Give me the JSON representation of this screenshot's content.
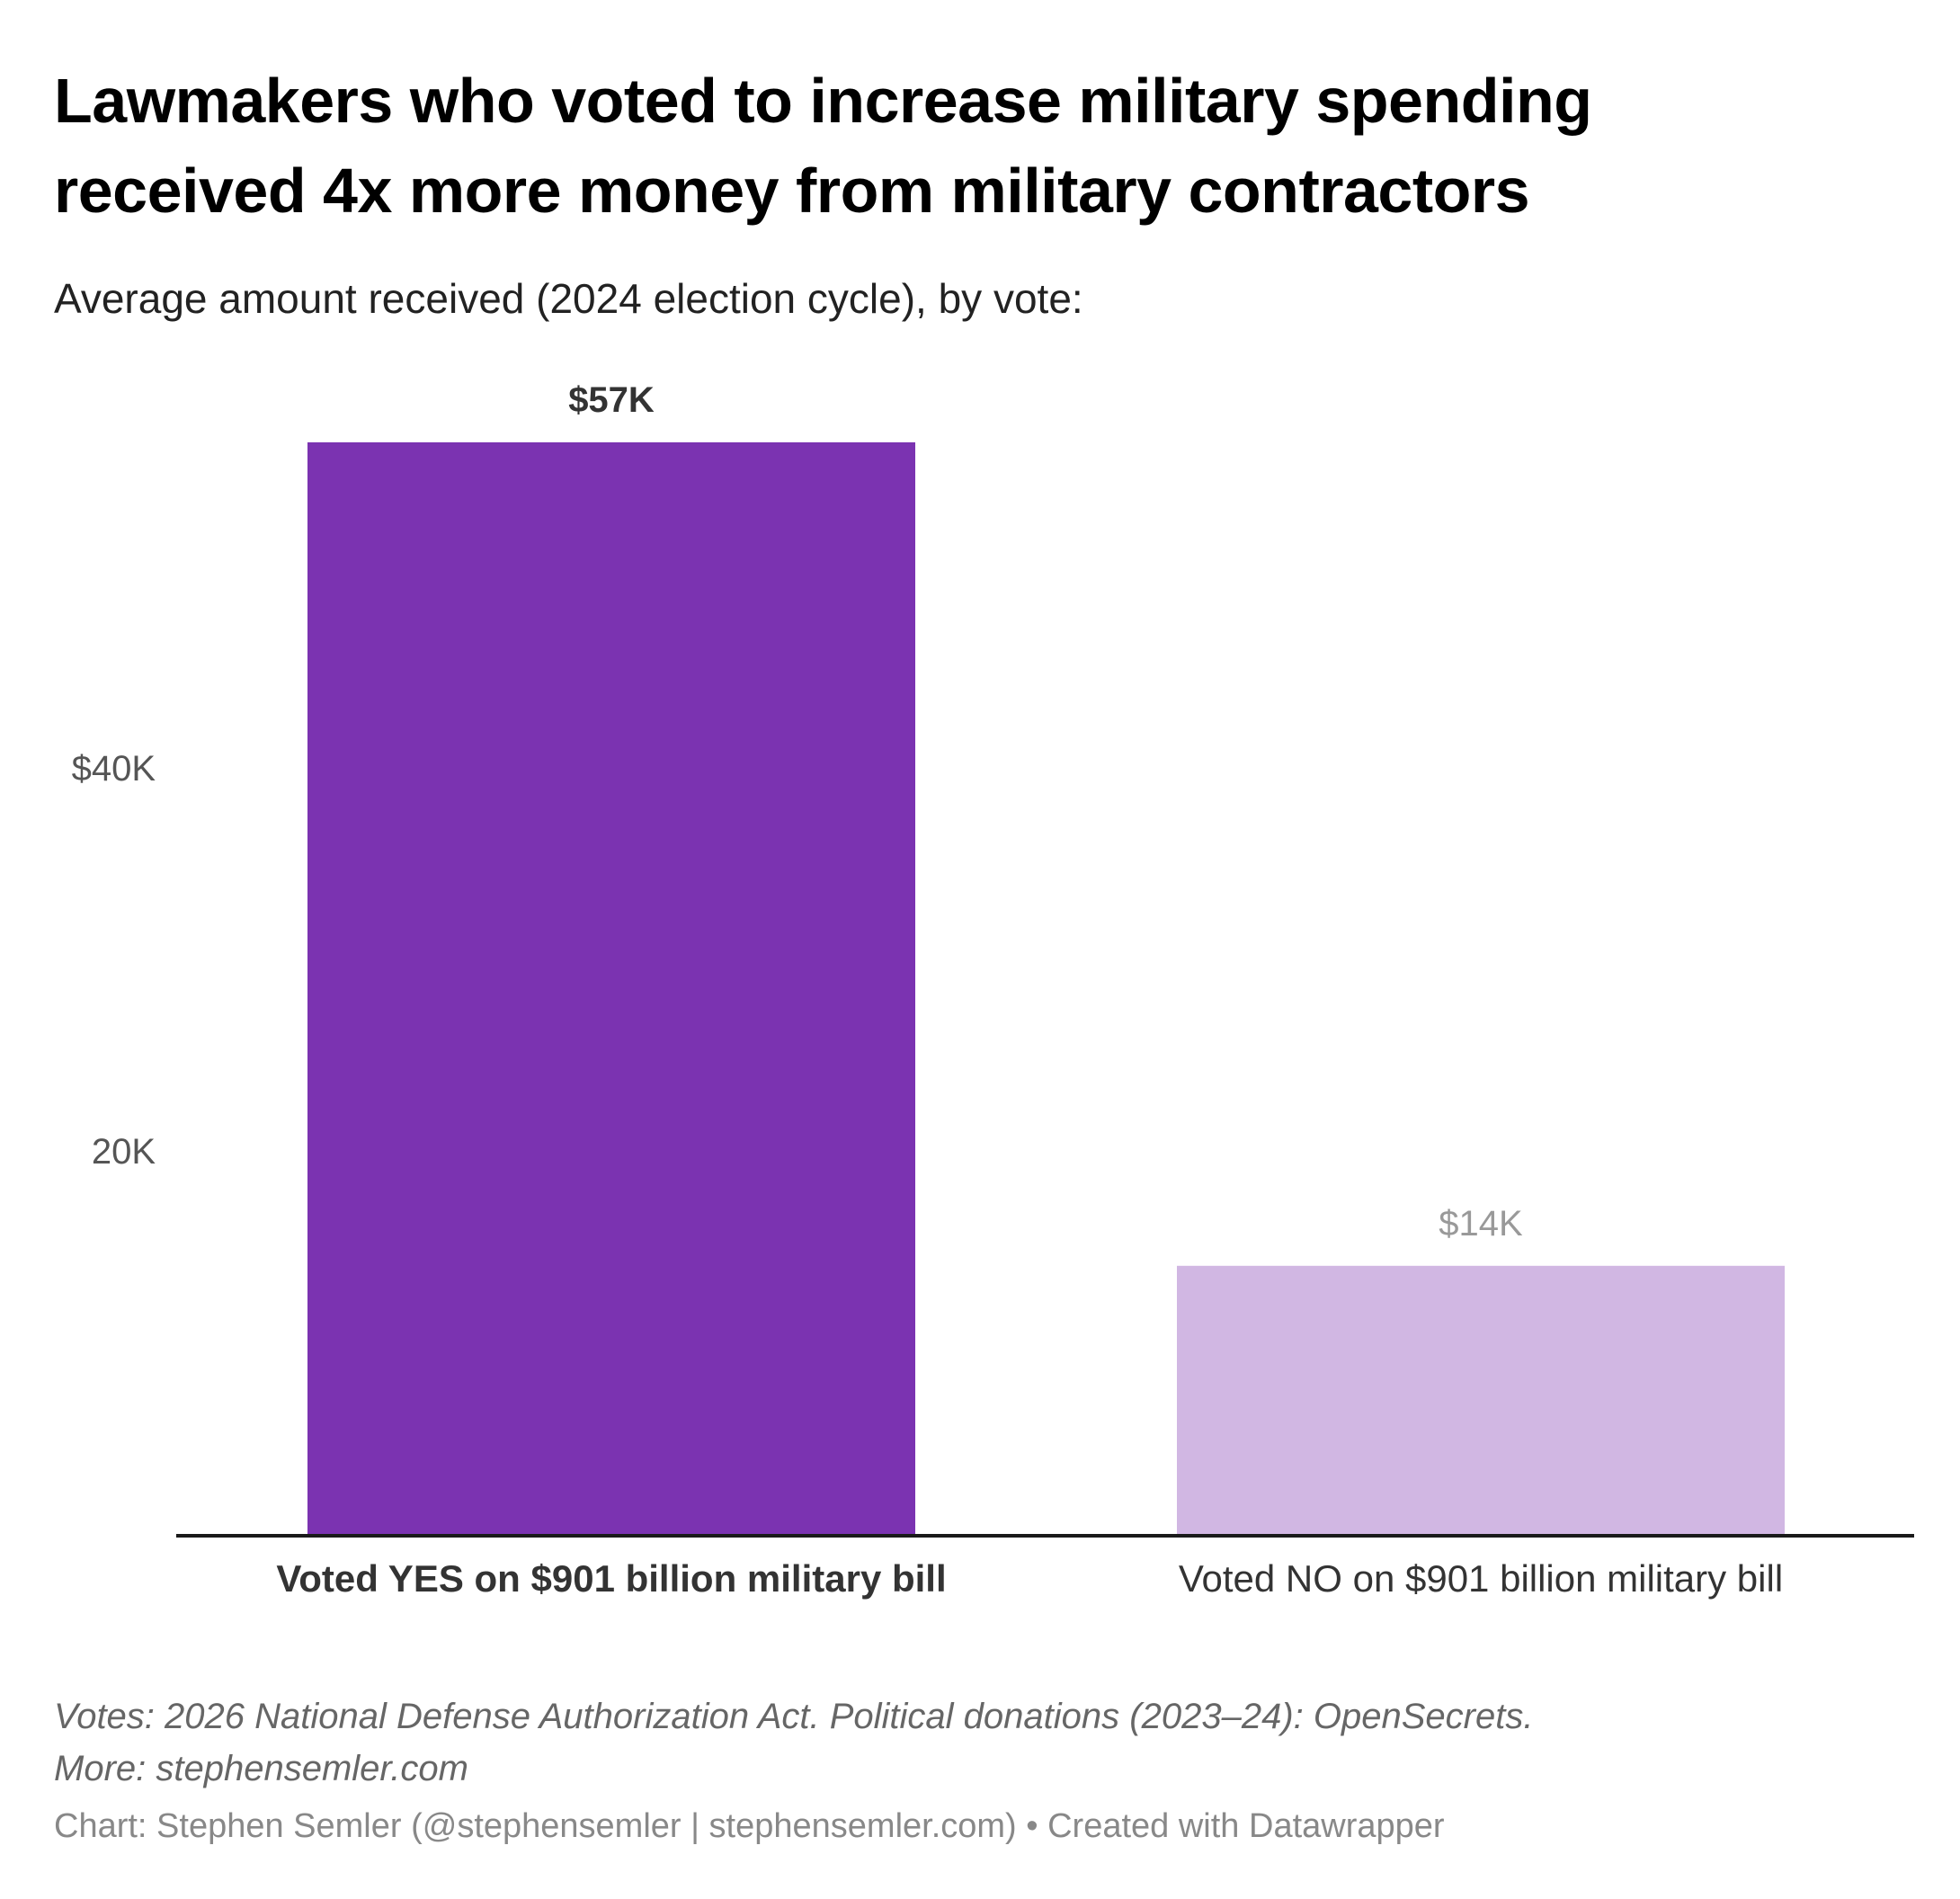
{
  "title_lines": [
    "Lawmakers who voted to increase military spending",
    "received 4x more money from military contractors"
  ],
  "subtitle": "Average amount received (2024 election cycle), by vote:",
  "notes_lines": [
    "Votes: 2026 National Defense Authorization Act. Political donations (2023–24): OpenSecrets.",
    "More: stephensemler.com"
  ],
  "credit": "Chart: Stephen Semler (@stephensemler | stephensemler.com) • Created with Datawrapper",
  "chart_data": {
    "type": "bar",
    "title": "Lawmakers who voted to increase military spending received 4x more money from military contractors",
    "subtitle": "Average amount received (2024 election cycle), by vote:",
    "categories": [
      "Voted YES on $901 billion military bill",
      "Voted NO on $901 billion military bill"
    ],
    "values": [
      57000,
      14000
    ],
    "value_labels": [
      "$57K",
      "$14K"
    ],
    "colors": [
      "#7b33b1",
      "#d1b7e3"
    ],
    "value_label_colors": [
      "#333333",
      "#999999"
    ],
    "yticks": [
      20000,
      40000
    ],
    "ytick_labels": [
      "20K",
      "$40K"
    ],
    "ylim": [
      0,
      60000
    ],
    "xlabel": "",
    "ylabel": "",
    "grid": false
  }
}
